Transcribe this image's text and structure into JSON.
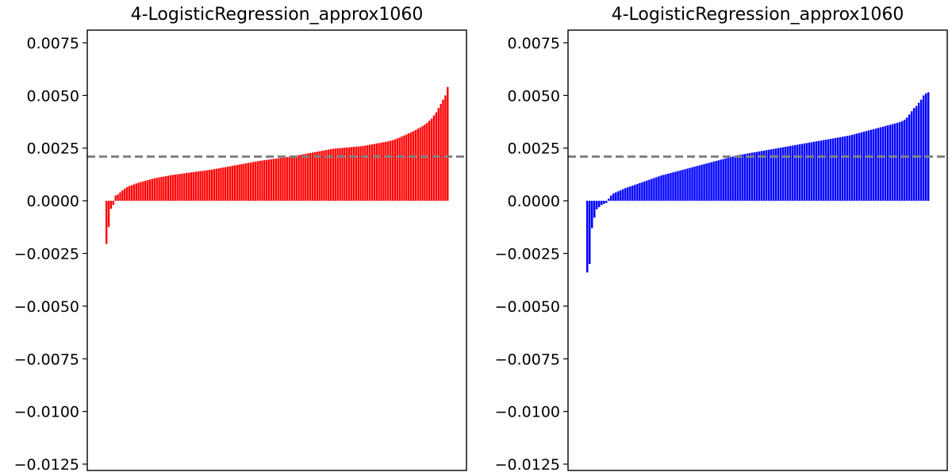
{
  "chart_data": [
    {
      "type": "bar",
      "title": "4-LogisticRegression_approx1060",
      "xlabel": "",
      "ylabel": "",
      "ylim": [
        -0.0128,
        0.0081
      ],
      "yticks": [
        "0.0075",
        "0.0050",
        "0.0025",
        "0.0000",
        "−0.0025",
        "−0.0050",
        "−0.0075",
        "−0.0100",
        "−0.0125"
      ],
      "ytick_values": [
        0.0075,
        0.005,
        0.0025,
        0.0,
        -0.0025,
        -0.005,
        -0.0075,
        -0.01,
        -0.0125
      ],
      "xticks_visible": false,
      "grid": false,
      "bar_color": "#ff0000",
      "reference_line": {
        "value": 0.0021,
        "style": "dashed",
        "color": "#808080"
      },
      "sorted": "ascending",
      "values": [
        -0.00205,
        -0.00125,
        -0.00038,
        -0.0002,
        0.00025,
        0.0003,
        0.0004,
        0.0005,
        0.00058,
        0.00065,
        0.0007,
        0.00074,
        0.00078,
        0.00082,
        0.00086,
        0.00089,
        0.00092,
        0.00095,
        0.00098,
        0.00101,
        0.00104,
        0.00107,
        0.00109,
        0.00111,
        0.00113,
        0.00115,
        0.00117,
        0.00119,
        0.00121,
        0.00123,
        0.00124,
        0.00126,
        0.00127,
        0.00129,
        0.0013,
        0.00132,
        0.00133,
        0.00135,
        0.00136,
        0.00138,
        0.00139,
        0.00141,
        0.00142,
        0.00144,
        0.00145,
        0.00147,
        0.00148,
        0.0015,
        0.00152,
        0.00154,
        0.00156,
        0.00158,
        0.0016,
        0.00162,
        0.00164,
        0.00166,
        0.00168,
        0.0017,
        0.00172,
        0.00174,
        0.00176,
        0.00178,
        0.0018,
        0.00182,
        0.00184,
        0.00186,
        0.00188,
        0.0019,
        0.00191,
        0.00193,
        0.00194,
        0.00196,
        0.00197,
        0.00199,
        0.002,
        0.00202,
        0.00203,
        0.00205,
        0.00206,
        0.00208,
        0.00209,
        0.00211,
        0.00213,
        0.00215,
        0.00217,
        0.00219,
        0.00221,
        0.00223,
        0.00225,
        0.00227,
        0.00229,
        0.00231,
        0.00233,
        0.00235,
        0.00237,
        0.00239,
        0.00241,
        0.00243,
        0.00245,
        0.00247,
        0.00248,
        0.00249,
        0.0025,
        0.00251,
        0.00252,
        0.00253,
        0.00254,
        0.00255,
        0.00256,
        0.00257,
        0.00258,
        0.00259,
        0.0026,
        0.00262,
        0.00264,
        0.00266,
        0.00268,
        0.0027,
        0.00272,
        0.00274,
        0.00276,
        0.00278,
        0.0028,
        0.00282,
        0.00285,
        0.00288,
        0.00292,
        0.00296,
        0.003,
        0.00305,
        0.0031,
        0.00315,
        0.0032,
        0.00325,
        0.0033,
        0.00336,
        0.00342,
        0.00348,
        0.00355,
        0.00362,
        0.0037,
        0.0038,
        0.0039,
        0.00405,
        0.0042,
        0.0044,
        0.0046,
        0.0048,
        0.005,
        0.0054
      ]
    },
    {
      "type": "bar",
      "title": "4-LogisticRegression_approx1060",
      "xlabel": "",
      "ylabel": "",
      "ylim": [
        -0.0128,
        0.0081
      ],
      "yticks": [
        "0.0075",
        "0.0050",
        "0.0025",
        "0.0000",
        "−0.0025",
        "−0.0050",
        "−0.0075",
        "−0.0100",
        "−0.0125"
      ],
      "ytick_values": [
        0.0075,
        0.005,
        0.0025,
        0.0,
        -0.0025,
        -0.005,
        -0.0075,
        -0.01,
        -0.0125
      ],
      "xticks_visible": false,
      "grid": false,
      "bar_color": "#0000ff",
      "reference_line": {
        "value": 0.0021,
        "style": "dashed",
        "color": "#808080"
      },
      "sorted": "ascending",
      "values": [
        -0.0034,
        -0.003,
        -0.0013,
        -0.0008,
        -0.0004,
        -0.0003,
        -0.0002,
        -0.00015,
        -0.0001,
        0.0001,
        0.00025,
        0.00035,
        0.0004,
        0.00045,
        0.0005,
        0.00055,
        0.0006,
        0.00064,
        0.00068,
        0.00072,
        0.00076,
        0.0008,
        0.00084,
        0.00088,
        0.00092,
        0.00096,
        0.001,
        0.00104,
        0.00108,
        0.00112,
        0.00116,
        0.0012,
        0.00123,
        0.00126,
        0.00129,
        0.00132,
        0.00135,
        0.00138,
        0.00141,
        0.00144,
        0.00147,
        0.0015,
        0.00153,
        0.00156,
        0.00159,
        0.00162,
        0.00165,
        0.00168,
        0.00171,
        0.00174,
        0.00177,
        0.0018,
        0.00183,
        0.00186,
        0.00189,
        0.00192,
        0.00195,
        0.00198,
        0.00201,
        0.00204,
        0.00207,
        0.0021,
        0.00213,
        0.00216,
        0.00218,
        0.0022,
        0.00222,
        0.00224,
        0.00226,
        0.00228,
        0.0023,
        0.00232,
        0.00234,
        0.00236,
        0.00238,
        0.0024,
        0.00242,
        0.00244,
        0.00246,
        0.00248,
        0.0025,
        0.00252,
        0.00254,
        0.00256,
        0.00258,
        0.0026,
        0.00262,
        0.00264,
        0.00266,
        0.00268,
        0.0027,
        0.00272,
        0.00274,
        0.00276,
        0.00278,
        0.0028,
        0.00282,
        0.00284,
        0.00286,
        0.00288,
        0.0029,
        0.00292,
        0.00294,
        0.00296,
        0.00298,
        0.003,
        0.00302,
        0.00304,
        0.00306,
        0.00308,
        0.0031,
        0.00313,
        0.00316,
        0.00319,
        0.00322,
        0.00325,
        0.00328,
        0.00331,
        0.00334,
        0.00337,
        0.0034,
        0.00343,
        0.00346,
        0.00349,
        0.00352,
        0.00355,
        0.00358,
        0.00361,
        0.00364,
        0.00367,
        0.0037,
        0.00374,
        0.00378,
        0.00385,
        0.00395,
        0.0041,
        0.00425,
        0.0044,
        0.0045,
        0.00465,
        0.0048,
        0.005,
        0.0051,
        0.00515
      ]
    }
  ]
}
